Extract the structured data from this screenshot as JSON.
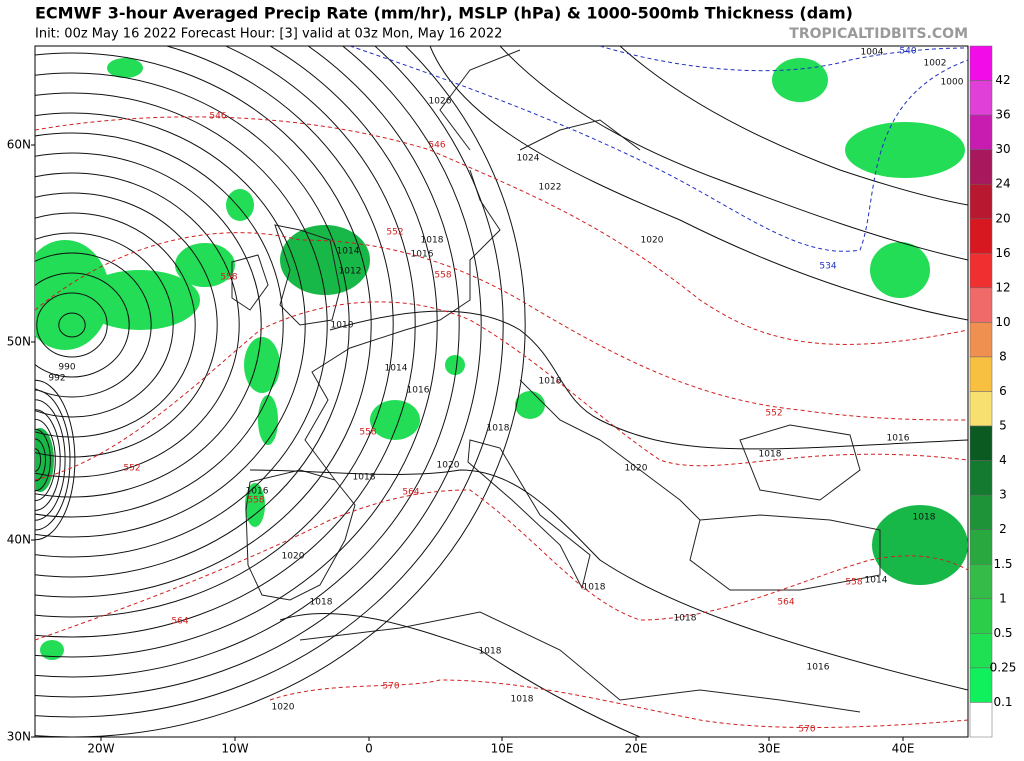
{
  "header": {
    "title": "ECMWF 3-hour Averaged Precip Rate (mm/hr), MSLP (hPa) & 1000-500mb Thickness (dam)",
    "subtitle": "Init: 00z May 16 2022   Forecast Hour: [3]   valid at 03z Mon, May 16 2022",
    "watermark": "TROPICALTIDBITS.COM"
  },
  "axes": {
    "lat_labels": [
      "60N",
      "50N",
      "40N",
      "30N"
    ],
    "lon_labels": [
      "20W",
      "10W",
      "0",
      "10E",
      "20E",
      "30E",
      "40E"
    ]
  },
  "colorbar": {
    "labels": [
      "42",
      "36",
      "30",
      "24",
      "20",
      "16",
      "12",
      "10",
      "8",
      "6",
      "5",
      "4",
      "3",
      "2",
      "1.5",
      "1",
      "0.5",
      "0.25",
      "0.1"
    ],
    "colors": [
      "#f20ce8",
      "#e040d8",
      "#c81cb0",
      "#a8185c",
      "#b81830",
      "#d81820",
      "#f03030",
      "#f06a6a",
      "#f09050",
      "#f8c040",
      "#f8e070",
      "#0a5a22",
      "#137a30",
      "#1e9338",
      "#2aa840",
      "#34bb48",
      "#2ccd48",
      "#1ee052",
      "#10f05c",
      "#ffffff"
    ]
  },
  "contour_labels": {
    "isobars": [
      "1026",
      "1024",
      "1022",
      "1020",
      "1018",
      "1016",
      "1014",
      "1012",
      "1010",
      "1014",
      "1016",
      "1018",
      "1018",
      "1020",
      "1018",
      "1016",
      "1020",
      "1018",
      "1018",
      "1018",
      "1018",
      "1018",
      "1020",
      "1016",
      "1018",
      "1016",
      "1018",
      "1014",
      "990",
      "992",
      "1002",
      "1000",
      "1004",
      "1020"
    ],
    "thickness": [
      "546",
      "546",
      "552",
      "558",
      "558",
      "552",
      "558",
      "558",
      "564",
      "564",
      "570",
      "570",
      "564",
      "558",
      "552"
    ],
    "thickness_cold": [
      "540",
      "534"
    ]
  }
}
